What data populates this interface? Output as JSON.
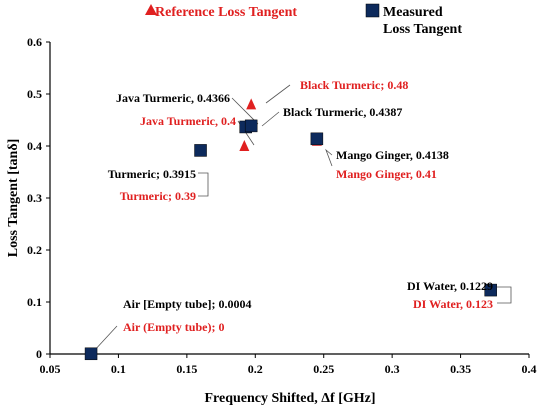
{
  "chart_data": {
    "type": "scatter",
    "xlabel": "Frequency Shifted, Δf [GHz]",
    "ylabel": "Loss Tangent [tanδ]",
    "xlim": [
      0.05,
      0.4
    ],
    "ylim": [
      0,
      0.6
    ],
    "x_ticks": [
      "0.05",
      "0.1",
      "0.15",
      "0.2",
      "0.25",
      "0.3",
      "0.35",
      "0.4"
    ],
    "y_ticks": [
      "0",
      "0.1",
      "0.2",
      "0.3",
      "0.4",
      "0.5",
      "0.6"
    ],
    "grid": false,
    "legend_position": "top",
    "series": [
      {
        "name": "Reference Loss Tangent",
        "marker": "triangle",
        "color": "#e02020",
        "points": [
          {
            "label": "Air (Empty tube); 0",
            "x": 0.08,
            "y": 0
          },
          {
            "label": "Turmeric; 0.39",
            "x": 0.16,
            "y": 0.39
          },
          {
            "label": "Java Turmeric, 0.4",
            "x": 0.192,
            "y": 0.4
          },
          {
            "label": "Black Turmeric; 0.48",
            "x": 0.197,
            "y": 0.48
          },
          {
            "label": "Mango Ginger, 0.41",
            "x": 0.245,
            "y": 0.41
          },
          {
            "label": "DI Water, 0.123",
            "x": 0.372,
            "y": 0.123
          }
        ]
      },
      {
        "name": "Measured Loss Tangent",
        "marker": "square",
        "color": "#0d2a5c",
        "points": [
          {
            "label": "Air [Empty tube]; 0.0004",
            "x": 0.08,
            "y": 0.0004
          },
          {
            "label": "Turmeric; 0.3915",
            "x": 0.16,
            "y": 0.3915
          },
          {
            "label": "Java Turmeric, 0.4366",
            "x": 0.193,
            "y": 0.4366
          },
          {
            "label": "Black Turmeric, 0.4387",
            "x": 0.197,
            "y": 0.4387
          },
          {
            "label": "Mango Ginger, 0.4138",
            "x": 0.245,
            "y": 0.4138
          },
          {
            "label": "DI Water, 0.1229",
            "x": 0.372,
            "y": 0.1229
          }
        ]
      }
    ],
    "legend": {
      "reference": "Reference Loss Tangent",
      "measured_line1": "Measured",
      "measured_line2": "Loss Tangent"
    }
  }
}
